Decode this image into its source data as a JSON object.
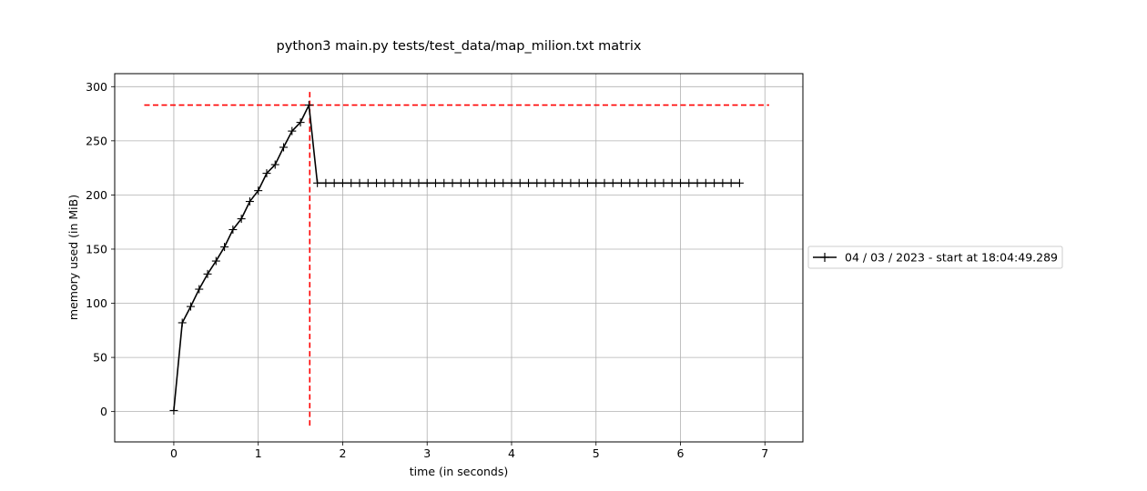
{
  "chart_data": {
    "type": "line",
    "title": "python3 main.py tests/test_data/map_milion.txt matrix",
    "xlabel": "time (in seconds)",
    "ylabel": "memory used (in MiB)",
    "xlim": [
      -0.7,
      7.45
    ],
    "ylim": [
      -28,
      312
    ],
    "xticks": [
      0,
      1,
      2,
      3,
      4,
      5,
      6,
      7
    ],
    "yticks": [
      0,
      50,
      100,
      150,
      200,
      250,
      300
    ],
    "grid": true,
    "legend_placement": "right, outside plot",
    "series": [
      {
        "name": "04 / 03 / 2023 - start at 18:04:49.289",
        "color": "#000000",
        "marker": "plus",
        "x": [
          0.0,
          0.1,
          0.2,
          0.3,
          0.4,
          0.5,
          0.6,
          0.7,
          0.8,
          0.9,
          1.0,
          1.1,
          1.2,
          1.3,
          1.4,
          1.5,
          1.6,
          1.7,
          1.8,
          1.9,
          2.0,
          2.1,
          2.2,
          2.3,
          2.4,
          2.5,
          2.6,
          2.7,
          2.8,
          2.9,
          3.0,
          3.1,
          3.2,
          3.3,
          3.4,
          3.5,
          3.6,
          3.7,
          3.8,
          3.9,
          4.0,
          4.1,
          4.2,
          4.3,
          4.4,
          4.5,
          4.6,
          4.7,
          4.8,
          4.9,
          5.0,
          5.1,
          5.2,
          5.3,
          5.4,
          5.5,
          5.6,
          5.7,
          5.8,
          5.9,
          6.0,
          6.1,
          6.2,
          6.3,
          6.4,
          6.5,
          6.6,
          6.7
        ],
        "y": [
          1,
          82,
          97,
          113,
          127,
          139,
          152,
          168,
          178,
          194,
          204,
          220,
          228,
          244,
          259,
          267,
          283,
          211,
          211,
          211,
          211,
          211,
          211,
          211,
          211,
          211,
          211,
          211,
          211,
          211,
          211,
          211,
          211,
          211,
          211,
          211,
          211,
          211,
          211,
          211,
          211,
          211,
          211,
          211,
          211,
          211,
          211,
          211,
          211,
          211,
          211,
          211,
          211,
          211,
          211,
          211,
          211,
          211,
          211,
          211,
          211,
          211,
          211,
          211,
          211,
          211,
          211,
          211
        ]
      }
    ],
    "reference_lines": [
      {
        "orientation": "horizontal",
        "y": 283,
        "x_range": [
          -0.35,
          7.05
        ],
        "color": "#ff0000",
        "style": "dashed"
      },
      {
        "orientation": "vertical",
        "x": 1.61,
        "y_range": [
          -13,
          297
        ],
        "color": "#ff0000",
        "style": "dashed"
      }
    ]
  }
}
